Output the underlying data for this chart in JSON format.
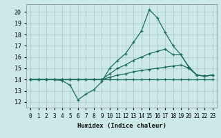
{
  "xlabel": "Humidex (Indice chaleur)",
  "background_color": "#cce9e7",
  "grid_color": "#aaccca",
  "line_color": "#1a6b5e",
  "xlim": [
    -0.5,
    23.5
  ],
  "ylim": [
    11.5,
    20.7
  ],
  "xticks": [
    0,
    1,
    2,
    3,
    4,
    5,
    6,
    7,
    8,
    9,
    10,
    11,
    12,
    13,
    14,
    15,
    16,
    17,
    18,
    19,
    20,
    21,
    22,
    23
  ],
  "yticks": [
    12,
    13,
    14,
    15,
    16,
    17,
    18,
    19,
    20
  ],
  "lines": [
    {
      "x": [
        0,
        1,
        2,
        3,
        4,
        5,
        6,
        7,
        8,
        9,
        10,
        11,
        12,
        13,
        14,
        15,
        16,
        17,
        18,
        19,
        20,
        21,
        22,
        23
      ],
      "y": [
        14,
        14,
        14,
        14,
        14,
        14,
        14,
        14,
        14,
        14,
        14,
        14,
        14,
        14,
        14,
        14,
        14,
        14,
        14,
        14,
        14,
        14,
        14,
        14
      ]
    },
    {
      "x": [
        0,
        1,
        2,
        3,
        4,
        5,
        6,
        7,
        8,
        9,
        10,
        11,
        12,
        13,
        14,
        15,
        16,
        17,
        18,
        19,
        20,
        21,
        22,
        23
      ],
      "y": [
        14,
        14,
        14,
        14,
        14,
        14,
        14,
        14,
        14,
        14,
        14.2,
        14.4,
        14.5,
        14.7,
        14.8,
        14.9,
        15.0,
        15.1,
        15.2,
        15.3,
        15.0,
        14.4,
        14.3,
        14.4
      ]
    },
    {
      "x": [
        0,
        1,
        2,
        3,
        4,
        5,
        6,
        7,
        8,
        9,
        10,
        11,
        12,
        13,
        14,
        15,
        16,
        17,
        18,
        19,
        20,
        21,
        22,
        23
      ],
      "y": [
        14,
        14,
        14,
        14,
        14,
        14,
        14,
        14,
        14,
        14,
        14.5,
        15.0,
        15.3,
        15.7,
        16.0,
        16.3,
        16.5,
        16.7,
        16.2,
        16.2,
        15.1,
        14.4,
        14.3,
        14.4
      ]
    },
    {
      "x": [
        0,
        1,
        2,
        3,
        4,
        5,
        6,
        7,
        8,
        9,
        10,
        11,
        12,
        13,
        14,
        15,
        16,
        17,
        18,
        19,
        20,
        21,
        22,
        23
      ],
      "y": [
        14,
        14,
        14,
        14,
        13.9,
        13.5,
        12.2,
        12.7,
        13.1,
        13.8,
        15.0,
        15.7,
        16.3,
        17.3,
        18.3,
        20.2,
        19.5,
        18.2,
        17.0,
        16.2,
        15.1,
        14.4,
        14.3,
        14.4
      ]
    }
  ]
}
